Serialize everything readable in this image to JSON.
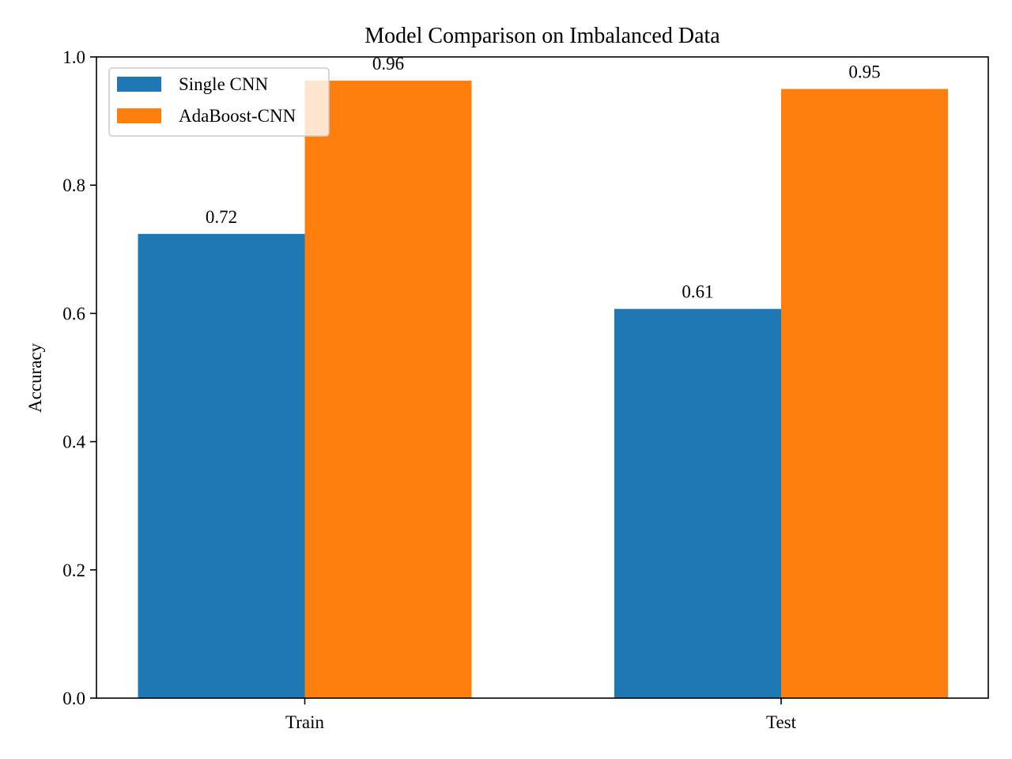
{
  "chart_data": {
    "type": "bar",
    "title": "Model Comparison on Imbalanced Data",
    "xlabel": "",
    "ylabel": "Accuracy",
    "categories": [
      "Train",
      "Test"
    ],
    "series": [
      {
        "name": "Single CNN",
        "values": [
          0.724,
          0.607
        ],
        "labels": [
          "0.72",
          "0.61"
        ],
        "color": "#1f77b4"
      },
      {
        "name": "AdaBoost-CNN",
        "values": [
          0.963,
          0.95
        ],
        "labels": [
          "0.96",
          "0.95"
        ],
        "color": "#ff7f0e"
      }
    ],
    "ylim": [
      0,
      1.0
    ],
    "yticks": [
      "0.0",
      "0.2",
      "0.4",
      "0.6",
      "0.8",
      "1.0"
    ],
    "grid": false,
    "legend_position": "top-left"
  }
}
